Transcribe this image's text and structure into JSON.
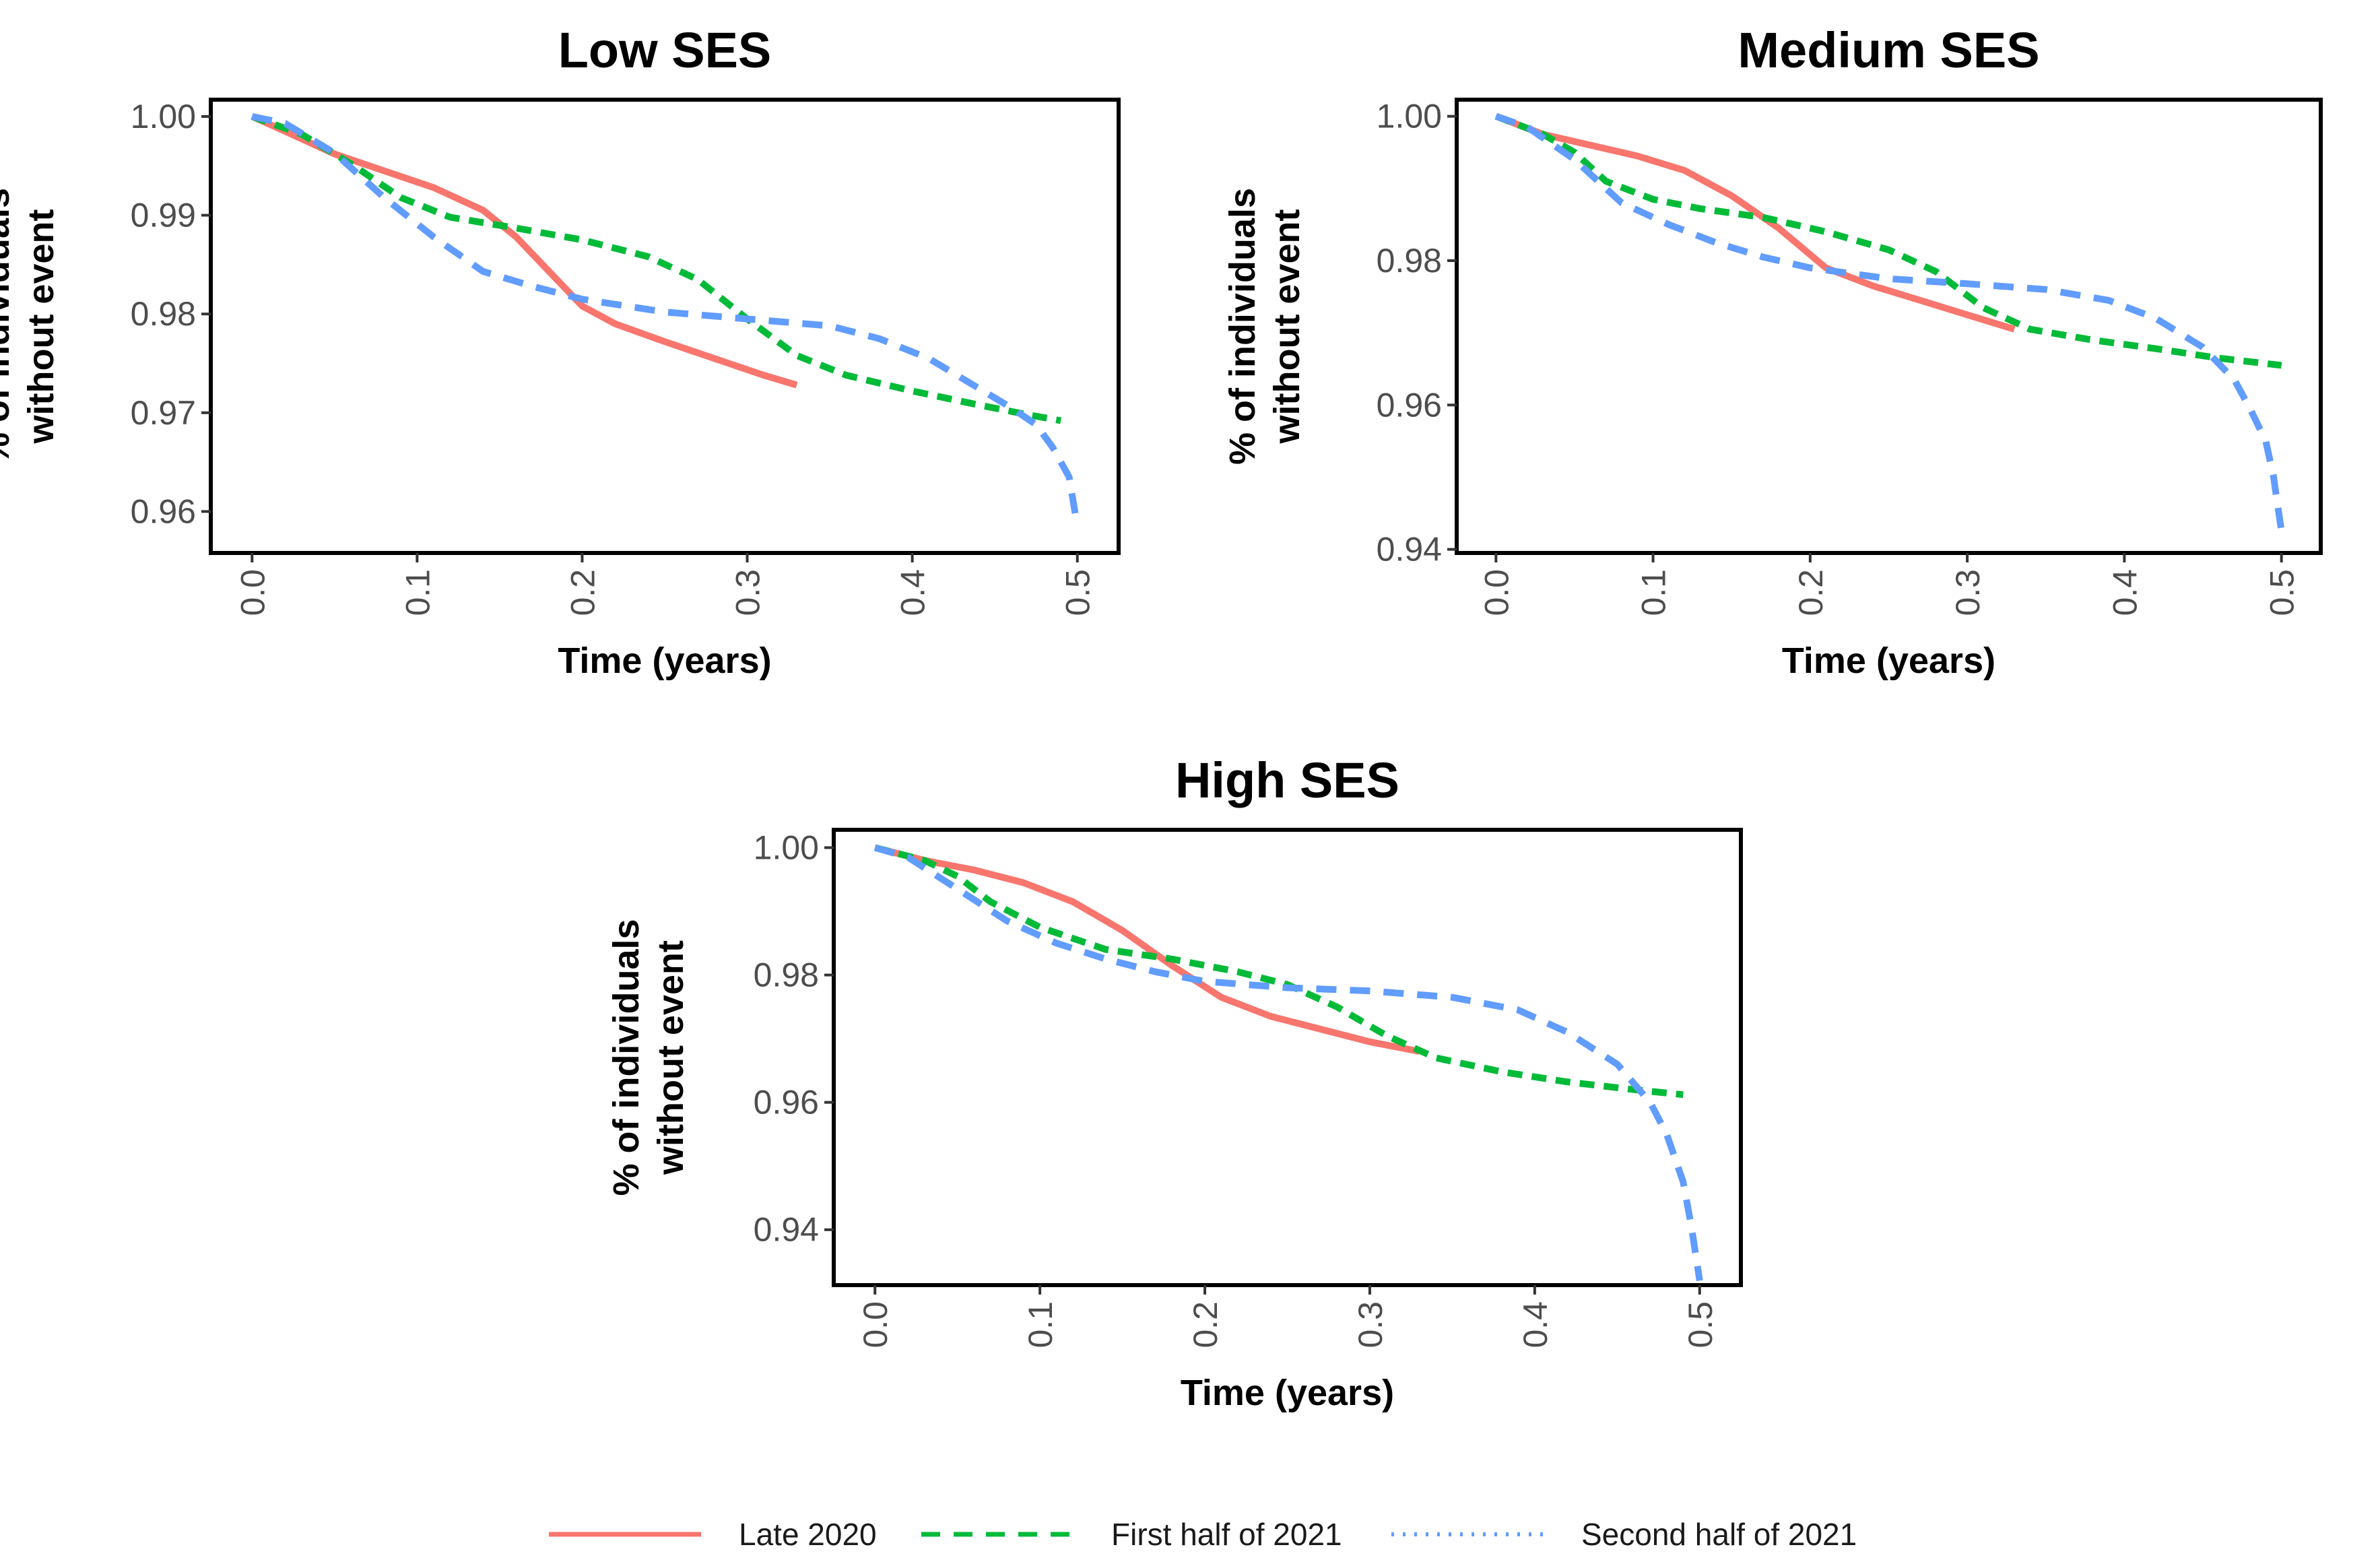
{
  "chart_data": [
    {
      "type": "line",
      "title": "Low SES",
      "xlabel": "Time (years)",
      "ylabel": [
        "% of individuals",
        "without event"
      ],
      "xlim": [
        -0.025,
        0.525
      ],
      "ylim": [
        0.9558,
        1.0017
      ],
      "x_ticks": [
        0,
        0.1,
        0.2,
        0.3,
        0.4,
        0.5
      ],
      "x_tick_labels": [
        "0.0",
        "0.1",
        "0.2",
        "0.3",
        "0.4",
        "0.5"
      ],
      "y_ticks": [
        1.0,
        0.99,
        0.98,
        0.97,
        0.96
      ],
      "y_tick_labels": [
        "1.00",
        "0.99",
        "0.98",
        "0.97",
        "0.96"
      ],
      "series": [
        {
          "name": "Late 2020",
          "x": [
            0,
            0.02,
            0.05,
            0.08,
            0.11,
            0.14,
            0.16,
            0.18,
            0.2,
            0.22,
            0.25,
            0.28,
            0.31,
            0.33
          ],
          "y": [
            1.0,
            0.9985,
            0.9962,
            0.9945,
            0.9928,
            0.9905,
            0.9878,
            0.9843,
            0.9808,
            0.979,
            0.9772,
            0.9755,
            0.9738,
            0.9728
          ]
        },
        {
          "name": "First half of 2021",
          "x": [
            0,
            0.03,
            0.06,
            0.09,
            0.12,
            0.16,
            0.2,
            0.24,
            0.27,
            0.3,
            0.33,
            0.36,
            0.4,
            0.44,
            0.47,
            0.49
          ],
          "y": [
            1.0,
            0.9982,
            0.9952,
            0.9918,
            0.9898,
            0.9887,
            0.9875,
            0.9858,
            0.9835,
            0.9795,
            0.9758,
            0.9738,
            0.9722,
            0.9708,
            0.9698,
            0.9692
          ]
        },
        {
          "name": "Second half of 2021",
          "x": [
            0,
            0.02,
            0.05,
            0.08,
            0.11,
            0.14,
            0.17,
            0.2,
            0.25,
            0.3,
            0.35,
            0.38,
            0.41,
            0.44,
            0.46,
            0.475,
            0.485,
            0.495,
            0.5
          ],
          "y": [
            1.0,
            0.9993,
            0.9963,
            0.9918,
            0.9878,
            0.9843,
            0.9828,
            0.9815,
            0.9802,
            0.9795,
            0.9788,
            0.9775,
            0.9755,
            0.9725,
            0.9705,
            0.9688,
            0.9665,
            0.9635,
            0.9585
          ]
        }
      ]
    },
    {
      "type": "line",
      "title": "Medium SES",
      "xlabel": "Time (years)",
      "ylabel": [
        "% of individuals",
        "without event"
      ],
      "xlim": [
        -0.025,
        0.525
      ],
      "ylim": [
        0.9395,
        1.0023
      ],
      "x_ticks": [
        0,
        0.1,
        0.2,
        0.3,
        0.4,
        0.5
      ],
      "x_tick_labels": [
        "0.0",
        "0.1",
        "0.2",
        "0.3",
        "0.4",
        "0.5"
      ],
      "y_ticks": [
        1.0,
        0.98,
        0.96,
        0.94
      ],
      "y_tick_labels": [
        "1.00",
        "0.98",
        "0.96",
        "0.94"
      ],
      "series": [
        {
          "name": "Late 2020",
          "x": [
            0,
            0.03,
            0.06,
            0.09,
            0.12,
            0.15,
            0.18,
            0.21,
            0.24,
            0.27,
            0.3,
            0.33
          ],
          "y": [
            1.0,
            0.9975,
            0.996,
            0.9945,
            0.9925,
            0.989,
            0.9845,
            0.979,
            0.9765,
            0.9745,
            0.9725,
            0.9705
          ]
        },
        {
          "name": "First half of 2021",
          "x": [
            0,
            0.03,
            0.05,
            0.07,
            0.1,
            0.13,
            0.17,
            0.21,
            0.25,
            0.28,
            0.31,
            0.34,
            0.38,
            0.42,
            0.46,
            0.5
          ],
          "y": [
            1.0,
            0.9975,
            0.995,
            0.991,
            0.9885,
            0.9872,
            0.986,
            0.984,
            0.9815,
            0.9785,
            0.9735,
            0.9705,
            0.969,
            0.9678,
            0.9665,
            0.9655
          ]
        },
        {
          "name": "Second half of 2021",
          "x": [
            0,
            0.02,
            0.05,
            0.08,
            0.11,
            0.14,
            0.17,
            0.2,
            0.25,
            0.3,
            0.35,
            0.39,
            0.42,
            0.45,
            0.47,
            0.48,
            0.49,
            0.495,
            0.5
          ],
          "y": [
            1.0,
            0.9985,
            0.994,
            0.988,
            0.985,
            0.9825,
            0.9805,
            0.979,
            0.9775,
            0.9768,
            0.976,
            0.9745,
            0.972,
            0.968,
            0.9635,
            0.9595,
            0.955,
            0.95,
            0.9425
          ]
        }
      ]
    },
    {
      "type": "line",
      "title": "High SES",
      "xlabel": "Time (years)",
      "ylabel": [
        "% of individuals",
        "without event"
      ],
      "xlim": [
        -0.025,
        0.525
      ],
      "ylim": [
        0.9313,
        1.0028
      ],
      "x_ticks": [
        0,
        0.1,
        0.2,
        0.3,
        0.4,
        0.5
      ],
      "x_tick_labels": [
        "0.0",
        "0.1",
        "0.2",
        "0.3",
        "0.4",
        "0.5"
      ],
      "y_ticks": [
        1.0,
        0.98,
        0.96,
        0.94
      ],
      "y_tick_labels": [
        "1.00",
        "0.98",
        "0.96",
        "0.94"
      ],
      "series": [
        {
          "name": "Late 2020",
          "x": [
            0,
            0.03,
            0.06,
            0.09,
            0.12,
            0.15,
            0.18,
            0.21,
            0.24,
            0.27,
            0.3,
            0.33
          ],
          "y": [
            1.0,
            0.998,
            0.9965,
            0.9945,
            0.9915,
            0.987,
            0.9815,
            0.9765,
            0.9735,
            0.9715,
            0.9695,
            0.968
          ]
        },
        {
          "name": "First half of 2021",
          "x": [
            0,
            0.03,
            0.05,
            0.07,
            0.1,
            0.14,
            0.18,
            0.22,
            0.25,
            0.28,
            0.31,
            0.34,
            0.38,
            0.42,
            0.46,
            0.49
          ],
          "y": [
            1.0,
            0.998,
            0.9955,
            0.9915,
            0.9875,
            0.984,
            0.9825,
            0.9805,
            0.9785,
            0.975,
            0.9705,
            0.967,
            0.9648,
            0.9632,
            0.962,
            0.9612
          ]
        },
        {
          "name": "Second half of 2021",
          "x": [
            0,
            0.02,
            0.05,
            0.08,
            0.11,
            0.14,
            0.17,
            0.2,
            0.25,
            0.3,
            0.35,
            0.39,
            0.42,
            0.45,
            0.47,
            0.48,
            0.49,
            0.495,
            0.5
          ],
          "y": [
            1.0,
            0.9985,
            0.9935,
            0.9885,
            0.985,
            0.9825,
            0.9805,
            0.979,
            0.978,
            0.9775,
            0.9765,
            0.9745,
            0.971,
            0.966,
            0.96,
            0.955,
            0.9475,
            0.9405,
            0.932
          ]
        }
      ]
    }
  ],
  "legend": {
    "items": [
      {
        "label": "Late 2020",
        "color": "#f8766d",
        "style": "solid"
      },
      {
        "label": "First half of 2021",
        "color": "#00ba38",
        "style": "dashed"
      },
      {
        "label": "Second half of 2021",
        "color": "#619cff",
        "style": "dotted"
      }
    ]
  }
}
